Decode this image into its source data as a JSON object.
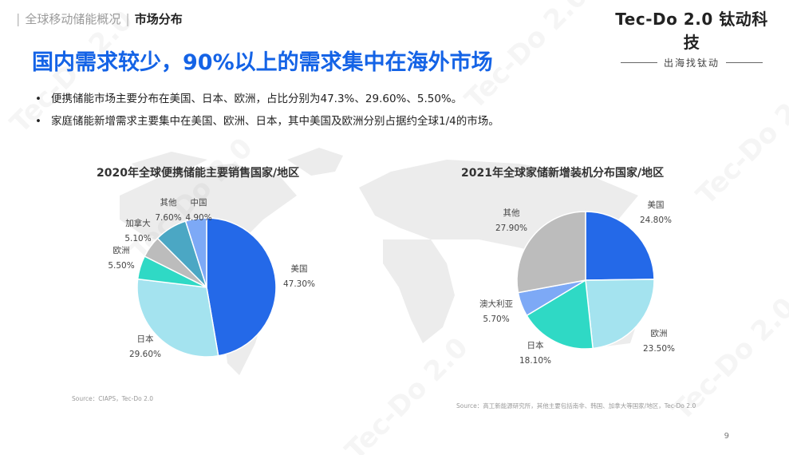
{
  "header": {
    "section": "全球移动储能概况",
    "subsection": "市场分布"
  },
  "brand": {
    "name": "Tec-Do 2.0 钛动科技",
    "tagline": "出海找钛动"
  },
  "headline": "国内需求较少，90%以上的需求集中在海外市场",
  "bullets": [
    "便携储能市场主要分布在美国、日本、欧洲，占比分别为47.3%、29.60%、5.50%。",
    "家庭储能新增需求主要集中在美国、欧洲、日本，其中美国及欧洲分别占据约全球1/4的市场。"
  ],
  "watermark": "Tec-Do 2.0",
  "page_number": "9",
  "chart_data": [
    {
      "type": "pie",
      "title": "2020年全球便携储能主要销售国家/地区",
      "source": "Source：CIAPS，Tec-Do 2.0",
      "slices": [
        {
          "label": "美国",
          "value": 47.3,
          "value_label": "47.30%",
          "color": "#2469e8"
        },
        {
          "label": "日本",
          "value": 29.6,
          "value_label": "29.60%",
          "color": "#a4e3ef"
        },
        {
          "label": "欧洲",
          "value": 5.5,
          "value_label": "5.50%",
          "color": "#2fd9c5"
        },
        {
          "label": "加拿大",
          "value": 5.1,
          "value_label": "5.10%",
          "color": "#bcbcbc"
        },
        {
          "label": "其他",
          "value": 7.6,
          "value_label": "7.60%",
          "color": "#4ba7c4"
        },
        {
          "label": "中国",
          "value": 4.9,
          "value_label": "4.90%",
          "color": "#7da9f6"
        }
      ]
    },
    {
      "type": "pie",
      "title": "2021年全球家储新增装机分布国家/地区",
      "source": "Source：高工新能源研究所，其他主要包括南非、韩国、加拿大等国家/地区，Tec-Do 2.0",
      "slices": [
        {
          "label": "美国",
          "value": 24.8,
          "value_label": "24.80%",
          "color": "#2469e8"
        },
        {
          "label": "欧洲",
          "value": 23.5,
          "value_label": "23.50%",
          "color": "#a4e3ef"
        },
        {
          "label": "日本",
          "value": 18.1,
          "value_label": "18.10%",
          "color": "#2fd9c5"
        },
        {
          "label": "澳大利亚",
          "value": 5.7,
          "value_label": "5.70%",
          "color": "#7da9f6"
        },
        {
          "label": "其他",
          "value": 27.9,
          "value_label": "27.90%",
          "color": "#bcbcbc"
        }
      ]
    }
  ]
}
